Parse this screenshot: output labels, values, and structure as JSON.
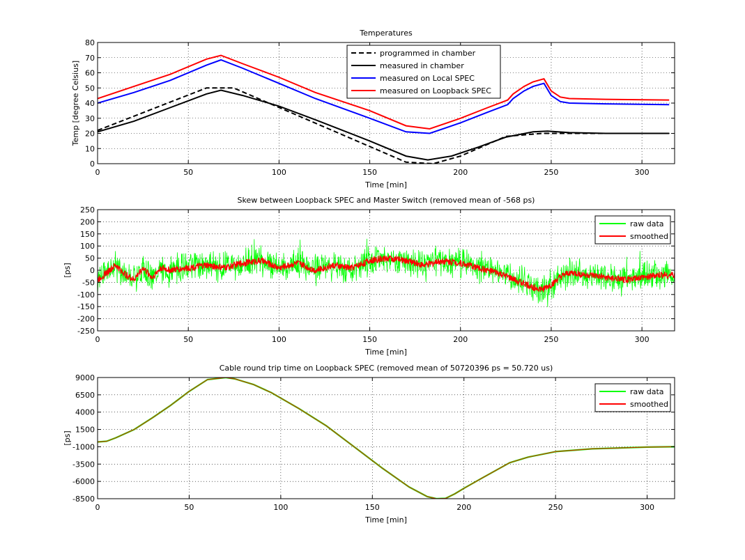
{
  "chart_data": [
    {
      "type": "line",
      "title": "Temperatures",
      "xlabel": "Time [min]",
      "ylabel": "Temp [degree Celsius]",
      "xlim": [
        0,
        318
      ],
      "ylim": [
        0,
        80
      ],
      "xticks": [
        0,
        50,
        100,
        150,
        200,
        250,
        300
      ],
      "yticks": [
        0,
        10,
        20,
        30,
        40,
        50,
        60,
        70,
        80
      ],
      "grid": true,
      "legend_position": "top-center",
      "series": [
        {
          "name": "programmed in chamber",
          "color": "#000000",
          "style": "dashed",
          "x": [
            0,
            60,
            75,
            170,
            185,
            200,
            225,
            245,
            255,
            270,
            315
          ],
          "y": [
            22,
            50,
            50,
            1,
            0,
            5,
            18,
            20,
            20,
            20,
            20
          ]
        },
        {
          "name": "measured in chamber",
          "color": "#000000",
          "style": "solid",
          "x": [
            0,
            20,
            40,
            60,
            68,
            80,
            100,
            120,
            150,
            170,
            182,
            195,
            210,
            225,
            240,
            248,
            260,
            280,
            315
          ],
          "y": [
            21,
            28,
            37,
            46,
            48.5,
            45,
            38,
            29,
            15,
            5,
            2.5,
            5,
            11,
            17.5,
            21,
            21.5,
            20.5,
            20,
            20
          ]
        },
        {
          "name": "measured on Local SPEC",
          "color": "#0000ff",
          "style": "solid",
          "x": [
            0,
            20,
            40,
            60,
            68,
            80,
            100,
            120,
            150,
            170,
            183,
            200,
            215,
            226,
            229,
            235,
            240,
            246,
            250,
            255,
            260,
            280,
            315
          ],
          "y": [
            40,
            47,
            55,
            65,
            68.5,
            63,
            53,
            43,
            30,
            21,
            20,
            27,
            34,
            39,
            43,
            48,
            51,
            53,
            45,
            41,
            40,
            39.5,
            39
          ]
        },
        {
          "name": "measured on Loopback SPEC",
          "color": "#ff0000",
          "style": "solid",
          "x": [
            0,
            20,
            40,
            60,
            68,
            80,
            100,
            120,
            150,
            170,
            183,
            200,
            215,
            226,
            229,
            235,
            240,
            246,
            250,
            255,
            260,
            280,
            315
          ],
          "y": [
            43,
            51,
            59,
            69,
            71.5,
            66,
            57,
            47,
            35,
            25,
            23,
            30,
            37,
            42,
            46,
            51,
            54,
            56,
            48,
            44,
            43,
            42.5,
            42
          ]
        }
      ]
    },
    {
      "type": "line",
      "title": "Skew between Loopback SPEC and Master Switch (removed mean of -568 ps)",
      "xlabel": "Time [min]",
      "ylabel": "[ps]",
      "xlim": [
        0,
        318
      ],
      "ylim": [
        -250,
        250
      ],
      "xticks": [
        0,
        50,
        100,
        150,
        200,
        250,
        300
      ],
      "yticks": [
        -250,
        -200,
        -150,
        -100,
        -50,
        0,
        50,
        100,
        150,
        200,
        250
      ],
      "grid": true,
      "legend_position": "top-right",
      "series": [
        {
          "name": "raw data",
          "color": "#00ff00",
          "spread": 50
        },
        {
          "name": "smoothed",
          "color": "#ff0000",
          "spread": 14,
          "x": [
            0,
            5,
            10,
            15,
            20,
            25,
            30,
            35,
            40,
            50,
            60,
            70,
            80,
            90,
            100,
            110,
            120,
            130,
            140,
            150,
            160,
            170,
            180,
            190,
            200,
            210,
            220,
            230,
            240,
            245,
            250,
            255,
            260,
            270,
            280,
            290,
            300,
            310,
            318
          ],
          "y": [
            -40,
            -10,
            20,
            -15,
            -40,
            10,
            -30,
            10,
            0,
            10,
            20,
            10,
            30,
            40,
            10,
            30,
            0,
            20,
            10,
            40,
            50,
            40,
            20,
            40,
            30,
            10,
            -10,
            -40,
            -70,
            -80,
            -60,
            -30,
            -10,
            -20,
            -30,
            -40,
            -30,
            -20,
            -20
          ]
        }
      ]
    },
    {
      "type": "line",
      "title": "Cable round trip time on Loopback SPEC (removed mean of 50720396 ps = 50.720 us)",
      "xlabel": "Time [min]",
      "ylabel": "[ps]",
      "xlim": [
        0,
        315
      ],
      "ylim": [
        -8500,
        9000
      ],
      "xticks": [
        0,
        50,
        100,
        150,
        200,
        250,
        300
      ],
      "yticks": [
        -8500,
        -6000,
        -3500,
        -1000,
        1500,
        4000,
        6500,
        9000
      ],
      "grid": true,
      "legend_position": "top-right",
      "series": [
        {
          "name": "raw data",
          "color": "#00ff00"
        },
        {
          "name": "smoothed",
          "color": "#ff0000",
          "x": [
            0,
            5,
            10,
            20,
            30,
            40,
            50,
            60,
            70,
            75,
            85,
            95,
            110,
            125,
            140,
            155,
            170,
            180,
            185,
            190,
            195,
            200,
            210,
            225,
            235,
            250,
            270,
            300,
            315
          ],
          "y": [
            -300,
            -200,
            300,
            1500,
            3200,
            5000,
            7000,
            8700,
            9000,
            8800,
            8000,
            6800,
            4500,
            2000,
            -1000,
            -4000,
            -6800,
            -8200,
            -8500,
            -8450,
            -7800,
            -7000,
            -5500,
            -3300,
            -2500,
            -1700,
            -1300,
            -1050,
            -1000
          ]
        }
      ]
    }
  ]
}
